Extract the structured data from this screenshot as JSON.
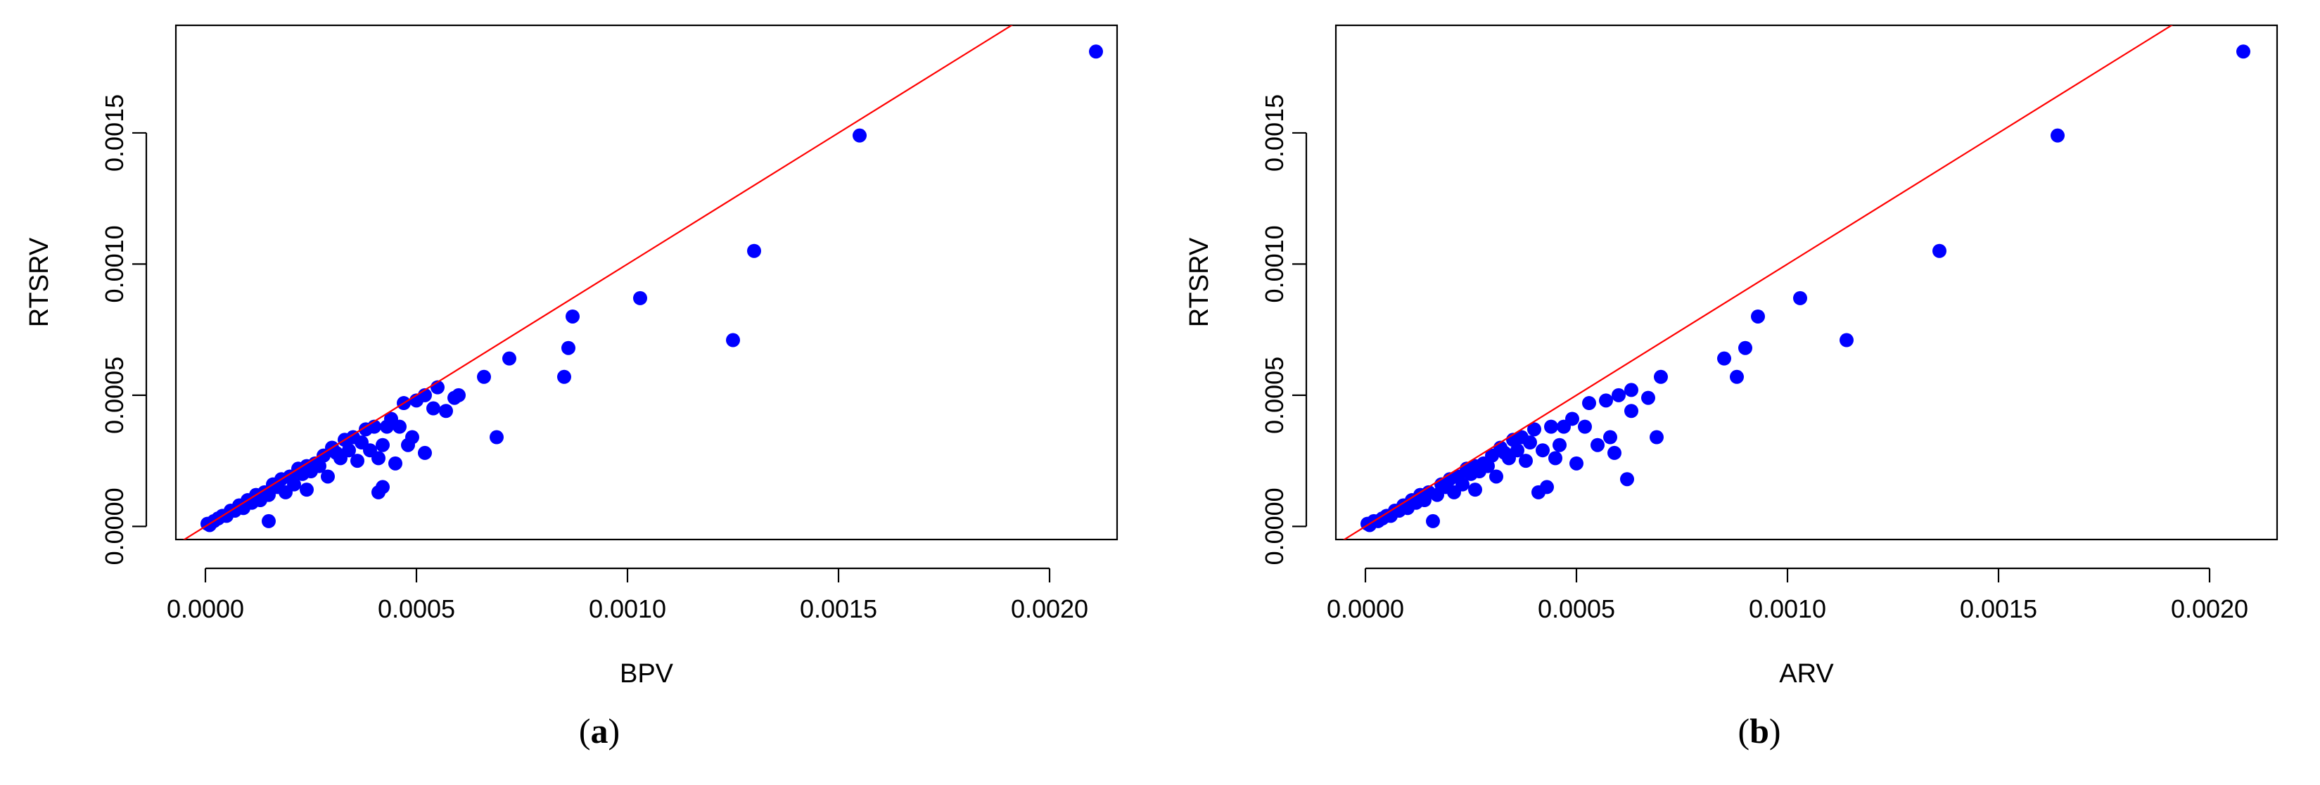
{
  "colors": {
    "points": "#0000ff",
    "reference_line": "#ff0000",
    "axis": "#000000"
  },
  "chart_data": [
    {
      "type": "scatter",
      "panel_label": "a",
      "xlabel": "BPV",
      "ylabel": "RTSRV",
      "xlim": [
        -7e-05,
        0.00216
      ],
      "ylim": [
        -5e-05,
        0.00191
      ],
      "x_ticks": [
        "0.0000",
        "0.0005",
        "0.0010",
        "0.0015",
        "0.0020"
      ],
      "x_tick_values": [
        0,
        0.0005,
        0.001,
        0.0015,
        0.002
      ],
      "y_ticks": [
        "0.0000",
        "0.0005",
        "0.0010",
        "0.0015"
      ],
      "y_tick_values": [
        0,
        0.0005,
        0.001,
        0.0015
      ],
      "grid": false,
      "reference_line": {
        "intercept": 0,
        "slope": 1
      },
      "points": [
        [
          0.00211,
          0.00181
        ],
        [
          0.00155,
          0.00149
        ],
        [
          0.0013,
          0.00105
        ],
        [
          0.00125,
          0.00071
        ],
        [
          0.00103,
          0.00087
        ],
        [
          0.00087,
          0.0008
        ],
        [
          0.00086,
          0.00068
        ],
        [
          0.00085,
          0.00057
        ],
        [
          0.00072,
          0.00064
        ],
        [
          0.00069,
          0.00034
        ],
        [
          0.00066,
          0.00057
        ],
        [
          0.0006,
          0.0005
        ],
        [
          0.00059,
          0.00049
        ],
        [
          0.00057,
          0.00044
        ],
        [
          0.00055,
          0.00053
        ],
        [
          0.00054,
          0.00045
        ],
        [
          0.00052,
          0.0005
        ],
        [
          0.00052,
          0.00028
        ],
        [
          0.0005,
          0.00048
        ],
        [
          0.00049,
          0.00034
        ],
        [
          0.00048,
          0.00031
        ],
        [
          0.00047,
          0.00047
        ],
        [
          0.00046,
          0.00038
        ],
        [
          0.00045,
          0.00024
        ],
        [
          0.00044,
          0.00041
        ],
        [
          0.00043,
          0.00038
        ],
        [
          0.00042,
          0.00031
        ],
        [
          0.00042,
          0.00015
        ],
        [
          0.00041,
          0.00026
        ],
        [
          0.00041,
          0.00013
        ],
        [
          0.0004,
          0.00038
        ],
        [
          0.00039,
          0.00029
        ],
        [
          0.00038,
          0.00037
        ],
        [
          0.00037,
          0.00032
        ],
        [
          0.00036,
          0.00025
        ],
        [
          0.00035,
          0.00034
        ],
        [
          0.00034,
          0.00029
        ],
        [
          0.00033,
          0.00033
        ],
        [
          0.00032,
          0.00026
        ],
        [
          0.00031,
          0.00028
        ],
        [
          0.0003,
          0.0003
        ],
        [
          0.00029,
          0.00019
        ],
        [
          0.00028,
          0.00027
        ],
        [
          0.00027,
          0.00023
        ],
        [
          0.00026,
          0.00024
        ],
        [
          0.00025,
          0.00021
        ],
        [
          0.00024,
          0.00023
        ],
        [
          0.00024,
          0.00014
        ],
        [
          0.00023,
          0.0002
        ],
        [
          0.00022,
          0.00022
        ],
        [
          0.00021,
          0.00016
        ],
        [
          0.0002,
          0.00019
        ],
        [
          0.00019,
          0.00013
        ],
        [
          0.00018,
          0.00018
        ],
        [
          0.00017,
          0.00015
        ],
        [
          0.00016,
          0.00016
        ],
        [
          0.00015,
          0.00012
        ],
        [
          0.00015,
          2e-05
        ],
        [
          0.00014,
          0.00013
        ],
        [
          0.00013,
          0.0001
        ],
        [
          0.00012,
          0.00012
        ],
        [
          0.00011,
          9e-05
        ],
        [
          0.0001,
          0.0001
        ],
        [
          9e-05,
          7e-05
        ],
        [
          8e-05,
          8e-05
        ],
        [
          7e-05,
          6e-05
        ],
        [
          6e-05,
          6e-05
        ],
        [
          5e-05,
          4e-05
        ],
        [
          4e-05,
          4e-05
        ],
        [
          3e-05,
          3e-05
        ],
        [
          2e-05,
          2e-05
        ],
        [
          1e-05,
          1e-05
        ],
        [
          5e-06,
          1e-05
        ],
        [
          1e-05,
          5e-06
        ]
      ]
    },
    {
      "type": "scatter",
      "panel_label": "b",
      "xlabel": "ARV",
      "ylabel": "RTSRV",
      "xlim": [
        -7e-05,
        0.00216
      ],
      "ylim": [
        -5e-05,
        0.00191
      ],
      "x_ticks": [
        "0.0000",
        "0.0005",
        "0.0010",
        "0.0015",
        "0.0020"
      ],
      "x_tick_values": [
        0,
        0.0005,
        0.001,
        0.0015,
        0.002
      ],
      "y_ticks": [
        "0.0000",
        "0.0005",
        "0.0010",
        "0.0015"
      ],
      "y_tick_values": [
        0,
        0.0005,
        0.001,
        0.0015
      ],
      "grid": false,
      "reference_line": {
        "intercept": 0,
        "slope": 1
      },
      "points": [
        [
          0.00208,
          0.00181
        ],
        [
          0.00164,
          0.00149
        ],
        [
          0.00136,
          0.00105
        ],
        [
          0.00114,
          0.00071
        ],
        [
          0.00103,
          0.00087
        ],
        [
          0.00093,
          0.0008
        ],
        [
          0.0009,
          0.00068
        ],
        [
          0.00088,
          0.00057
        ],
        [
          0.00085,
          0.00064
        ],
        [
          0.0007,
          0.00057
        ],
        [
          0.00069,
          0.00034
        ],
        [
          0.00067,
          0.00049
        ],
        [
          0.00063,
          0.00052
        ],
        [
          0.00063,
          0.00044
        ],
        [
          0.00062,
          0.00018
        ],
        [
          0.0006,
          0.0005
        ],
        [
          0.00059,
          0.00028
        ],
        [
          0.00058,
          0.00034
        ],
        [
          0.00057,
          0.00048
        ],
        [
          0.00055,
          0.00031
        ],
        [
          0.00053,
          0.00047
        ],
        [
          0.00052,
          0.00038
        ],
        [
          0.0005,
          0.00024
        ],
        [
          0.00049,
          0.00041
        ],
        [
          0.00047,
          0.00038
        ],
        [
          0.00046,
          0.00031
        ],
        [
          0.00045,
          0.00026
        ],
        [
          0.00044,
          0.00038
        ],
        [
          0.00043,
          0.00015
        ],
        [
          0.00042,
          0.00029
        ],
        [
          0.00041,
          0.00013
        ],
        [
          0.0004,
          0.00037
        ],
        [
          0.00039,
          0.00032
        ],
        [
          0.00038,
          0.00025
        ],
        [
          0.00037,
          0.00034
        ],
        [
          0.00036,
          0.00029
        ],
        [
          0.00035,
          0.00033
        ],
        [
          0.00034,
          0.00026
        ],
        [
          0.00033,
          0.00028
        ],
        [
          0.00032,
          0.0003
        ],
        [
          0.00031,
          0.00019
        ],
        [
          0.0003,
          0.00027
        ],
        [
          0.00029,
          0.00023
        ],
        [
          0.00028,
          0.00024
        ],
        [
          0.00027,
          0.00021
        ],
        [
          0.00026,
          0.00023
        ],
        [
          0.00026,
          0.00014
        ],
        [
          0.00025,
          0.0002
        ],
        [
          0.00024,
          0.00022
        ],
        [
          0.00023,
          0.00016
        ],
        [
          0.00022,
          0.00019
        ],
        [
          0.00021,
          0.00013
        ],
        [
          0.0002,
          0.00018
        ],
        [
          0.00019,
          0.00015
        ],
        [
          0.00018,
          0.00016
        ],
        [
          0.00017,
          0.00012
        ],
        [
          0.00016,
          2e-05
        ],
        [
          0.00015,
          0.00013
        ],
        [
          0.00014,
          0.0001
        ],
        [
          0.00013,
          0.00012
        ],
        [
          0.00012,
          9e-05
        ],
        [
          0.00011,
          0.0001
        ],
        [
          0.0001,
          7e-05
        ],
        [
          9e-05,
          8e-05
        ],
        [
          8e-05,
          6e-05
        ],
        [
          7e-05,
          6e-05
        ],
        [
          6e-05,
          4e-05
        ],
        [
          5e-05,
          4e-05
        ],
        [
          4e-05,
          3e-05
        ],
        [
          3e-05,
          2e-05
        ],
        [
          2e-05,
          2e-05
        ],
        [
          1e-05,
          1e-05
        ],
        [
          5e-06,
          1e-05
        ],
        [
          1e-05,
          5e-06
        ]
      ]
    }
  ]
}
